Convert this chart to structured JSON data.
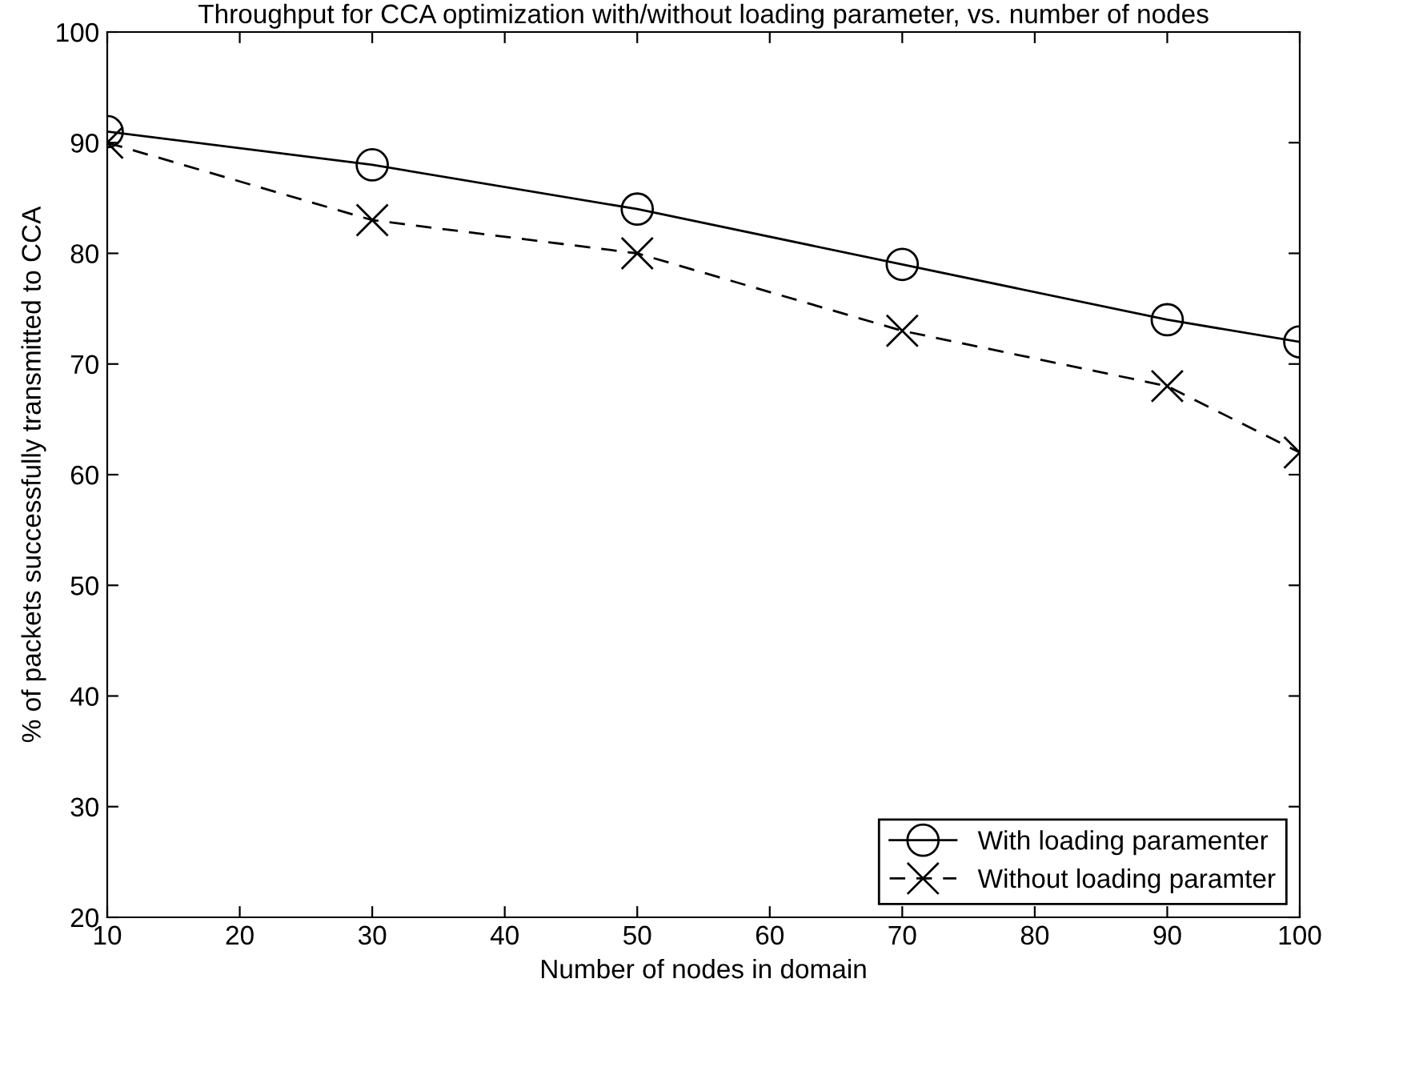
{
  "chart_data": {
    "type": "line",
    "title": "Throughput for CCA optimization with/without loading parameter, vs. number of nodes",
    "xlabel": "Number of nodes in domain",
    "ylabel": "% of packets successfully transmitted to CCA",
    "x": [
      10,
      30,
      50,
      70,
      90,
      100
    ],
    "series": [
      {
        "name": "With loading paramenter",
        "color": "#000000",
        "marker": "circle",
        "line_style": "solid",
        "values": [
          91,
          88,
          84,
          79,
          74,
          72
        ]
      },
      {
        "name": "Without loading paramter",
        "color": "#000000",
        "marker": "cross",
        "line_style": "dashed",
        "values": [
          90,
          83,
          80,
          73,
          68,
          62
        ]
      }
    ],
    "xlim": [
      10,
      100
    ],
    "ylim": [
      20,
      100
    ],
    "xticks": [
      10,
      20,
      30,
      40,
      50,
      60,
      70,
      80,
      90,
      100
    ],
    "yticks": [
      20,
      30,
      40,
      50,
      60,
      70,
      80,
      90,
      100
    ],
    "grid": false,
    "legend": "bottom right"
  }
}
